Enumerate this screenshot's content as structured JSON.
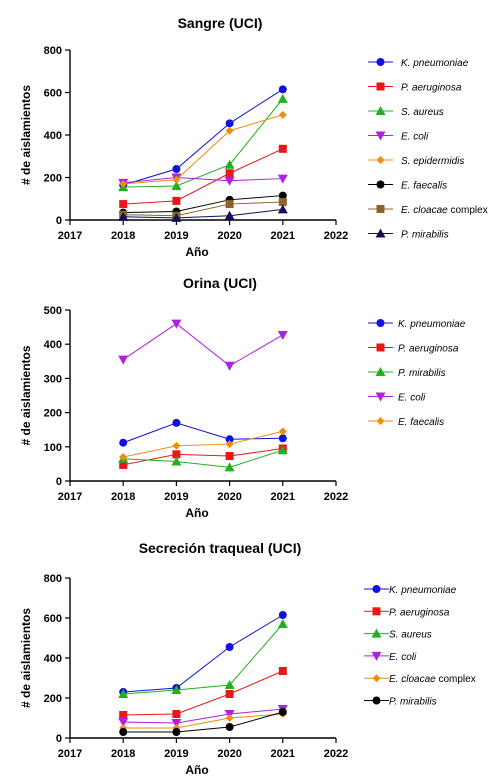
{
  "chart_data": [
    {
      "type": "line",
      "title": "Sangre (UCI)",
      "xlabel": "Año",
      "ylabel": "# de aislamientos",
      "xlim": [
        2017,
        2022
      ],
      "ylim": [
        0,
        800
      ],
      "xticks": [
        "2017",
        "2018",
        "2019",
        "2020",
        "2021",
        "2022"
      ],
      "yticks": [
        "0",
        "200",
        "400",
        "600",
        "800"
      ],
      "x": [
        2018,
        2019,
        2020,
        2021
      ],
      "legend_position": "right",
      "series": [
        {
          "name": "K. pneumoniae",
          "name_suffix": "",
          "color": "#1010e0",
          "marker": "circle",
          "values": [
            165,
            240,
            455,
            615
          ]
        },
        {
          "name": "P. aeruginosa",
          "name_suffix": "",
          "color": "#e81818",
          "marker": "square",
          "values": [
            75,
            90,
            220,
            335
          ]
        },
        {
          "name": "S. aureus",
          "name_suffix": "",
          "color": "#20b020",
          "marker": "triangle-up",
          "values": [
            155,
            160,
            260,
            570
          ]
        },
        {
          "name": "E. coli",
          "name_suffix": "",
          "color": "#b020e0",
          "marker": "triangle-down",
          "values": [
            175,
            200,
            185,
            195
          ]
        },
        {
          "name": "S. epidermidis",
          "name_suffix": "",
          "color": "#f08c10",
          "marker": "diamond",
          "values": [
            170,
            190,
            420,
            495
          ]
        },
        {
          "name": "E. faecalis",
          "name_suffix": "",
          "color": "#000000",
          "marker": "circle",
          "values": [
            35,
            40,
            95,
            115
          ]
        },
        {
          "name": "E. cloacae",
          "name_suffix": " complex",
          "color": "#8c6428",
          "marker": "square",
          "values": [
            25,
            20,
            75,
            85
          ]
        },
        {
          "name": "P. mirabilis",
          "name_suffix": "",
          "color": "#101060",
          "marker": "triangle-up",
          "values": [
            15,
            10,
            20,
            50
          ]
        }
      ]
    },
    {
      "type": "line",
      "title": "Orina (UCI)",
      "xlabel": "Año",
      "ylabel": "# de aislamientos",
      "xlim": [
        2017,
        2022
      ],
      "ylim": [
        0,
        500
      ],
      "xticks": [
        "2017",
        "2018",
        "2019",
        "2020",
        "2021",
        "2022"
      ],
      "yticks": [
        "0",
        "100",
        "200",
        "300",
        "400",
        "500"
      ],
      "x": [
        2018,
        2019,
        2020,
        2021
      ],
      "legend_position": "right",
      "series": [
        {
          "name": "K. pneumoniae",
          "name_suffix": "",
          "color": "#1010e0",
          "marker": "circle",
          "values": [
            112,
            170,
            122,
            125
          ]
        },
        {
          "name": "P. aeruginosa",
          "name_suffix": "",
          "color": "#e81818",
          "marker": "square",
          "values": [
            47,
            78,
            73,
            95
          ]
        },
        {
          "name": "P. mirabilis",
          "name_suffix": "",
          "color": "#20b020",
          "marker": "triangle-up",
          "values": [
            65,
            57,
            40,
            90
          ]
        },
        {
          "name": "E. coli",
          "name_suffix": "",
          "color": "#b020e0",
          "marker": "triangle-down",
          "values": [
            355,
            460,
            337,
            427
          ]
        },
        {
          "name": "E. faecalis",
          "name_suffix": "",
          "color": "#f08c10",
          "marker": "diamond",
          "values": [
            70,
            103,
            108,
            145
          ]
        }
      ]
    },
    {
      "type": "line",
      "title": "Secreción traqueal (UCI)",
      "xlabel": "Año",
      "ylabel": "# de aislamientos",
      "xlim": [
        2017,
        2022
      ],
      "ylim": [
        0,
        800
      ],
      "xticks": [
        "2017",
        "2018",
        "2019",
        "2020",
        "2021",
        "2022"
      ],
      "yticks": [
        "0",
        "200",
        "400",
        "600",
        "800"
      ],
      "x": [
        2018,
        2019,
        2020,
        2021
      ],
      "legend_position": "right",
      "series": [
        {
          "name": "K. pneumoniae",
          "name_suffix": "",
          "color": "#1010e0",
          "marker": "circle",
          "values": [
            230,
            250,
            455,
            615
          ]
        },
        {
          "name": "P. aeruginosa",
          "name_suffix": "",
          "color": "#e81818",
          "marker": "square",
          "values": [
            115,
            120,
            220,
            335
          ]
        },
        {
          "name": "S. aureus",
          "name_suffix": "",
          "color": "#20b020",
          "marker": "triangle-up",
          "values": [
            220,
            240,
            265,
            570
          ]
        },
        {
          "name": "E. coli",
          "name_suffix": "",
          "color": "#b020e0",
          "marker": "triangle-down",
          "values": [
            80,
            75,
            120,
            145
          ]
        },
        {
          "name": "E. cloacae",
          "name_suffix": " complex",
          "color": "#f08c10",
          "marker": "diamond",
          "values": [
            50,
            50,
            100,
            120
          ]
        },
        {
          "name": "P. mirabilis",
          "name_suffix": "",
          "color": "#000000",
          "marker": "circle",
          "values": [
            30,
            30,
            55,
            130
          ]
        }
      ]
    }
  ]
}
